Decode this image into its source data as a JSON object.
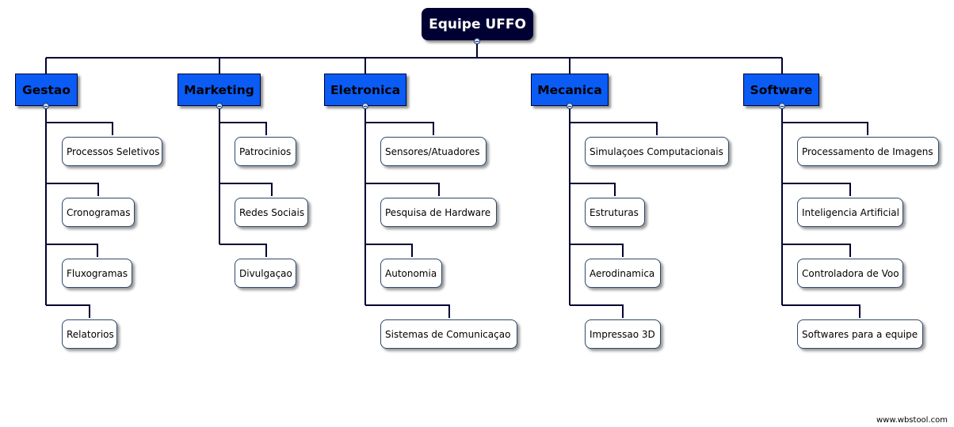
{
  "diagram": {
    "root": "Equipe UFFO",
    "branches": [
      {
        "label": "Gestao",
        "children": [
          "Processos Seletivos",
          "Cronogramas",
          "Fluxogramas",
          "Relatorios"
        ]
      },
      {
        "label": "Marketing",
        "children": [
          "Patrocinios",
          "Redes Sociais",
          "Divulgaçao"
        ]
      },
      {
        "label": "Eletronica",
        "children": [
          "Sensores/Atuadores",
          "Pesquisa de Hardware",
          "Autonomia",
          "Sistemas de Comunicaçao"
        ]
      },
      {
        "label": "Mecanica",
        "children": [
          "Simulaçoes Computacionais",
          "Estruturas",
          "Aerodinamica",
          "Impressao 3D"
        ]
      },
      {
        "label": "Software",
        "children": [
          "Processamento de Imagens",
          "Inteligencia Artificial",
          "Controladora de Voo",
          "Softwares para a equipe"
        ]
      }
    ]
  },
  "watermark": "www.wbstool.com",
  "colors": {
    "root_fill": "#000033",
    "branch_fill": "#0a5cf5",
    "connector": "#000033",
    "leaf_border": "#2d4a6b"
  }
}
